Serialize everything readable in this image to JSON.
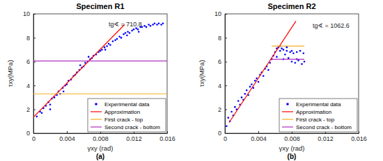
{
  "chart_data": [
    {
      "type": "scatter",
      "title": "Specimen R1",
      "x_label": "γxy (rad)",
      "y_label": "τxy(MPa)",
      "annotation": "tg∢ = 710.8",
      "caption": "(a)",
      "xlim": [
        0,
        0.016
      ],
      "xticks": [
        0,
        0.004,
        0.008,
        0.012,
        0.016
      ],
      "ylim": [
        0,
        10
      ],
      "yticks": [
        0,
        2,
        4,
        6,
        8,
        10
      ],
      "grid": false,
      "legend": "lower right",
      "series": [
        {
          "name": "Experimental data",
          "type": "scatter",
          "marker": "dot",
          "color": "#0000ff",
          "x": [
            0.0004,
            0.0008,
            0.001,
            0.0012,
            0.0015,
            0.0018,
            0.002,
            0.0022,
            0.0025,
            0.0028,
            0.003,
            0.0032,
            0.0035,
            0.0038,
            0.004,
            0.0042,
            0.0045,
            0.0048,
            0.005,
            0.0052,
            0.0055,
            0.0058,
            0.006,
            0.0062,
            0.0065,
            0.0068,
            0.007,
            0.0072,
            0.0075,
            0.0078,
            0.008,
            0.0082,
            0.0085,
            0.0088,
            0.009,
            0.0092,
            0.0095,
            0.0098,
            0.01,
            0.0103,
            0.0105,
            0.0108,
            0.011,
            0.0113,
            0.0115,
            0.0118,
            0.012,
            0.0123,
            0.0125,
            0.0128,
            0.013,
            0.0133,
            0.0135,
            0.0138,
            0.014,
            0.0143,
            0.0145,
            0.0148,
            0.015,
            0.0153,
            0.0155,
            0.002,
            0.0036,
            0.0056,
            0.0066,
            0.0086,
            0.0112,
            0.0126
          ],
          "values": [
            1.4,
            1.8,
            1.7,
            2.1,
            2.3,
            2.6,
            2.4,
            2.9,
            3.0,
            3.2,
            3.5,
            3.3,
            3.8,
            4.0,
            4.1,
            4.4,
            4.5,
            4.8,
            4.9,
            5.1,
            5.3,
            5.5,
            5.6,
            5.9,
            6.0,
            6.2,
            6.3,
            6.5,
            6.6,
            6.8,
            6.9,
            7.0,
            7.2,
            7.3,
            7.5,
            7.4,
            7.7,
            7.8,
            7.9,
            8.1,
            8.0,
            8.3,
            8.4,
            8.5,
            8.4,
            8.6,
            8.7,
            8.8,
            8.7,
            8.9,
            8.9,
            9.0,
            8.9,
            9.1,
            9.0,
            9.1,
            9.2,
            9.1,
            9.2,
            9.1,
            9.2,
            2.0,
            3.5,
            5.7,
            6.4,
            7.0,
            8.2,
            8.5
          ]
        },
        {
          "name": "Approximation",
          "type": "line",
          "color": "#ff0000",
          "x": [
            0,
            0.0109
          ],
          "values": [
            1.35,
            9.1
          ]
        },
        {
          "name": "First crack - top",
          "type": "line",
          "color": "#f0b020",
          "x": [
            0,
            0.016
          ],
          "values": [
            3.3,
            3.3
          ]
        },
        {
          "name": "Second crack - bottom",
          "type": "line",
          "color": "#b030c0",
          "x": [
            0,
            0.016
          ],
          "values": [
            6.05,
            6.05
          ]
        }
      ]
    },
    {
      "type": "scatter",
      "title": "Specimen R2",
      "x_label": "γxy (rad)",
      "y_label": "τxy(MPa)",
      "annotation": "tg∢ = 1062.6",
      "caption": "(b)",
      "xlim": [
        0,
        0.016
      ],
      "xticks": [
        0,
        0.004,
        0.008,
        0.012,
        0.016
      ],
      "ylim": [
        0,
        10
      ],
      "yticks": [
        0,
        2,
        4,
        6,
        8,
        10
      ],
      "grid": false,
      "legend": "lower right",
      "series": [
        {
          "name": "Experimental data",
          "type": "scatter",
          "marker": "dot",
          "color": "#0000ff",
          "x": [
            0.0002,
            0.0004,
            0.0006,
            0.0008,
            0.001,
            0.0012,
            0.0014,
            0.0016,
            0.0018,
            0.002,
            0.0022,
            0.0024,
            0.0026,
            0.0028,
            0.003,
            0.0032,
            0.0034,
            0.0036,
            0.0038,
            0.004,
            0.0042,
            0.0044,
            0.0046,
            0.0048,
            0.005,
            0.0052,
            0.0054,
            0.0056,
            0.0058,
            0.006,
            0.0062,
            0.0064,
            0.0066,
            0.0068,
            0.007,
            0.0072,
            0.0074,
            0.0076,
            0.0078,
            0.008,
            0.0082,
            0.0084,
            0.0086,
            0.0088,
            0.009,
            0.0092,
            0.0094,
            0.0095,
            0.0062,
            0.0066,
            0.007,
            0.0074,
            0.008,
            0.0086
          ],
          "values": [
            0.6,
            1.3,
            1.0,
            1.8,
            1.5,
            2.2,
            2.0,
            2.7,
            2.4,
            3.0,
            2.8,
            3.3,
            3.6,
            3.2,
            3.9,
            4.1,
            3.8,
            4.4,
            4.6,
            4.3,
            4.9,
            5.1,
            4.8,
            5.4,
            5.6,
            5.3,
            5.9,
            6.2,
            6.5,
            6.8,
            7.1,
            7.2,
            6.9,
            7.1,
            7.0,
            6.6,
            6.9,
            6.3,
            6.8,
            6.0,
            6.7,
            5.9,
            6.8,
            6.1,
            6.9,
            5.8,
            6.7,
            6.0,
            6.4,
            7.3,
            6.2,
            7.2,
            6.9,
            6.2
          ]
        },
        {
          "name": "Approximation",
          "type": "line",
          "color": "#ff0000",
          "x": [
            0.0005,
            0.0085
          ],
          "values": [
            0.9,
            9.4
          ]
        },
        {
          "name": "First crack - top",
          "type": "line",
          "color": "#f0b020",
          "x": [
            0.0056,
            0.0095
          ],
          "values": [
            7.3,
            7.3
          ]
        },
        {
          "name": "Second crack - bottom",
          "type": "line",
          "color": "#b030c0",
          "x": [
            0.0056,
            0.0095
          ],
          "values": [
            6.2,
            6.2
          ]
        }
      ]
    }
  ]
}
